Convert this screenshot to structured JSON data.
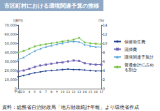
{
  "chart_data": {
    "type": "line",
    "title": "市区町村における環境関連予算の推移",
    "source": "資料：総務省自治財政局「地方財政統計年報」より環境省作成",
    "y_label": "(億円)",
    "y2_label": "(%)",
    "categories": [
      "平成2",
      "3",
      "4",
      "5",
      "6",
      "7",
      "8",
      "9",
      "10",
      "11",
      "12",
      "13",
      "14",
      "15",
      "16",
      "17"
    ],
    "ylim": [
      0,
      70000
    ],
    "yticks": [
      0,
      {
        "value": 10000,
        "label": "10,000"
      },
      {
        "value": 20000,
        "label": "20,000"
      },
      {
        "value": 30000,
        "label": "30,000"
      },
      {
        "value": 40000,
        "label": "40,000"
      },
      {
        "value": 50000,
        "label": "50,000"
      },
      {
        "value": 60000,
        "label": "60,000"
      },
      {
        "value": 70000,
        "label": "70,000"
      }
    ],
    "y2lim": [
      0,
      14
    ],
    "y2ticks": [
      0,
      2,
      4,
      6,
      8,
      10,
      12,
      14
    ],
    "grid": false,
    "legend": "right",
    "series": [
      {
        "name": "保健衛生費",
        "color": "#1f3f8f",
        "marker": "diamond",
        "values": [
          13000,
          14500,
          16000,
          17500,
          18500,
          19500,
          20000,
          20500,
          21000,
          21500,
          21000,
          21000,
          20500,
          20000,
          19500,
          19500
        ]
      },
      {
        "name": "清掃費",
        "color": "#6f63b5",
        "marker": "square",
        "values": [
          19000,
          20000,
          22000,
          24000,
          25500,
          26500,
          27500,
          28500,
          29000,
          30000,
          31000,
          30500,
          28000,
          27000,
          26500,
          26500
        ]
      },
      {
        "name": "環境関連予算計",
        "color": "#5aa6d8",
        "marker": "triangle",
        "values": [
          32000,
          34500,
          38000,
          41500,
          44000,
          46000,
          47500,
          49000,
          50000,
          51500,
          52000,
          51500,
          48500,
          47000,
          46000,
          46000
        ]
      },
      {
        "name": "普通会計に占める割合",
        "color": "#7ac04a",
        "marker": "circle",
        "axis": "y2",
        "values": [
          8.0,
          8.3,
          8.8,
          9.3,
          9.6,
          9.8,
          10.0,
          10.2,
          10.4,
          10.6,
          10.8,
          11.2,
          10.2,
          10.0,
          9.9,
          9.8
        ]
      }
    ]
  }
}
